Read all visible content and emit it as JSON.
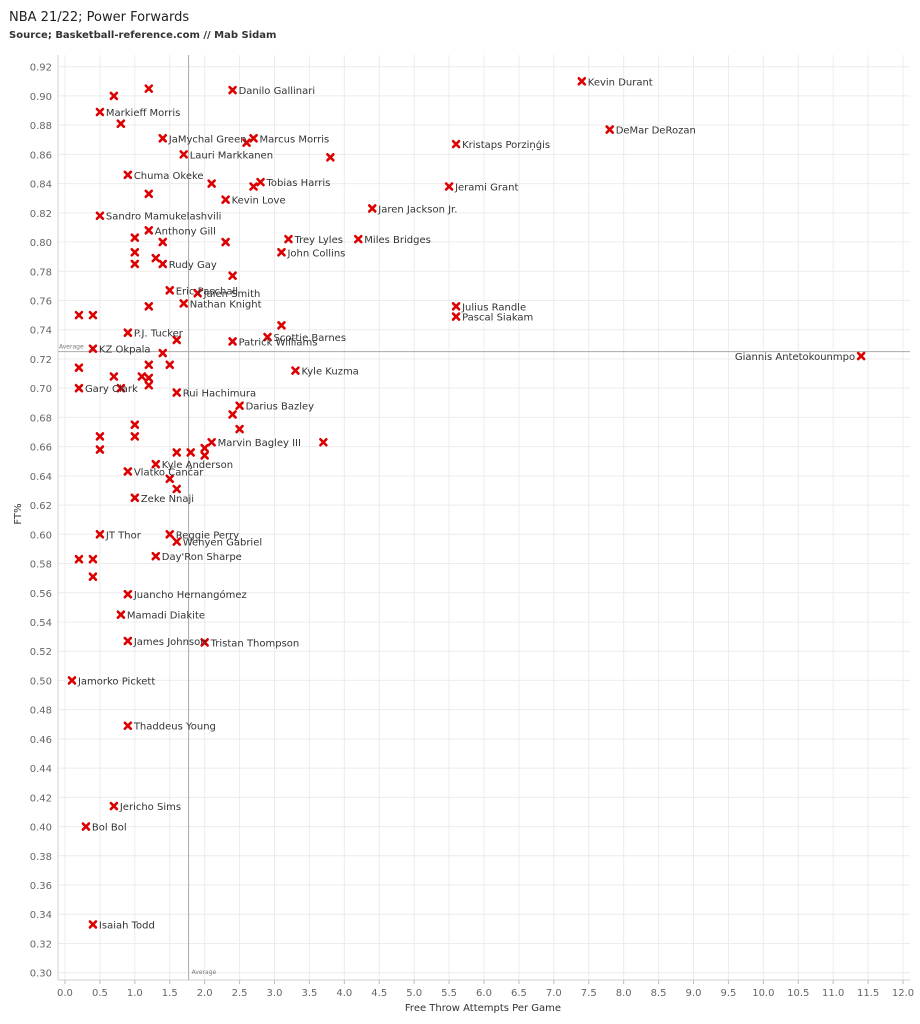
{
  "title": "NBA 21/22; Power Forwards",
  "subtitle": "Source; Basketball-reference.com // Mab Sidam",
  "chart_data": {
    "type": "scatter",
    "xlabel": "Free Throw Attempts Per Game",
    "ylabel": "FT%",
    "xlim": [
      -0.1,
      12.1
    ],
    "ylim": [
      0.295,
      0.928
    ],
    "xticks": [
      "0.0",
      "0.5",
      "1.0",
      "1.5",
      "2.0",
      "2.5",
      "3.0",
      "3.5",
      "4.0",
      "4.5",
      "5.0",
      "5.5",
      "6.0",
      "6.5",
      "7.0",
      "7.5",
      "8.0",
      "8.5",
      "9.0",
      "9.5",
      "10.0",
      "10.5",
      "11.0",
      "11.5",
      "12.0"
    ],
    "yticks": [
      "0.30",
      "0.32",
      "0.34",
      "0.36",
      "0.38",
      "0.40",
      "0.42",
      "0.44",
      "0.46",
      "0.48",
      "0.50",
      "0.52",
      "0.54",
      "0.56",
      "0.58",
      "0.60",
      "0.62",
      "0.64",
      "0.66",
      "0.68",
      "0.70",
      "0.72",
      "0.74",
      "0.76",
      "0.78",
      "0.80",
      "0.82",
      "0.84",
      "0.86",
      "0.88",
      "0.90",
      "0.92"
    ],
    "grid": true,
    "marker_color": "#dd0000",
    "reference_lines": [
      {
        "axis": "x",
        "value": 1.77,
        "label": "Average"
      },
      {
        "axis": "y",
        "value": 0.725,
        "label": "Average"
      }
    ],
    "points": [
      {
        "name": "Kevin Durant",
        "x": 7.4,
        "y": 0.91
      },
      {
        "name": "DeMar DeRozan",
        "x": 7.8,
        "y": 0.877
      },
      {
        "name": "Giannis Antetokounmpo",
        "x": 11.4,
        "y": 0.722
      },
      {
        "name": "Kristaps Porziņģis",
        "x": 5.6,
        "y": 0.867
      },
      {
        "name": "Jerami Grant",
        "x": 5.5,
        "y": 0.838
      },
      {
        "name": "Julius Randle",
        "x": 5.6,
        "y": 0.756
      },
      {
        "name": "Pascal Siakam",
        "x": 5.6,
        "y": 0.749
      },
      {
        "name": "Jaren Jackson Jr.",
        "x": 4.4,
        "y": 0.823
      },
      {
        "name": "Miles Bridges",
        "x": 4.2,
        "y": 0.802
      },
      {
        "name": "",
        "x": 3.8,
        "y": 0.858
      },
      {
        "name": "Danilo Gallinari",
        "x": 2.4,
        "y": 0.904
      },
      {
        "name": "Marcus Morris",
        "x": 2.7,
        "y": 0.871
      },
      {
        "name": "",
        "x": 2.6,
        "y": 0.868
      },
      {
        "name": "Lauri Markkanen",
        "x": 1.7,
        "y": 0.86
      },
      {
        "name": "Tobias Harris",
        "x": 2.8,
        "y": 0.841
      },
      {
        "name": "",
        "x": 2.7,
        "y": 0.838
      },
      {
        "name": "",
        "x": 2.1,
        "y": 0.84
      },
      {
        "name": "Kevin Love",
        "x": 2.3,
        "y": 0.829
      },
      {
        "name": "Trey Lyles",
        "x": 3.2,
        "y": 0.802
      },
      {
        "name": "John Collins",
        "x": 3.1,
        "y": 0.793
      },
      {
        "name": "",
        "x": 2.3,
        "y": 0.8
      },
      {
        "name": "",
        "x": 2.4,
        "y": 0.777
      },
      {
        "name": "Jalen Smith",
        "x": 1.9,
        "y": 0.765
      },
      {
        "name": "Scottie Barnes",
        "x": 2.9,
        "y": 0.735
      },
      {
        "name": "",
        "x": 3.1,
        "y": 0.743
      },
      {
        "name": "Patrick Williams",
        "x": 2.4,
        "y": 0.732
      },
      {
        "name": "Kyle Kuzma",
        "x": 3.3,
        "y": 0.712
      },
      {
        "name": "Darius Bazley",
        "x": 2.5,
        "y": 0.688
      },
      {
        "name": "",
        "x": 2.4,
        "y": 0.682
      },
      {
        "name": "",
        "x": 2.5,
        "y": 0.672
      },
      {
        "name": "Marvin Bagley III",
        "x": 2.1,
        "y": 0.663
      },
      {
        "name": "",
        "x": 3.7,
        "y": 0.663
      },
      {
        "name": "",
        "x": 2.0,
        "y": 0.659
      },
      {
        "name": "",
        "x": 2.0,
        "y": 0.654
      },
      {
        "name": "",
        "x": 1.8,
        "y": 0.656
      },
      {
        "name": "",
        "x": 1.6,
        "y": 0.656
      },
      {
        "name": "Kyle Anderson",
        "x": 1.3,
        "y": 0.648
      },
      {
        "name": "",
        "x": 1.5,
        "y": 0.638
      },
      {
        "name": "Zeke Nnaji",
        "x": 1.0,
        "y": 0.625
      },
      {
        "name": "",
        "x": 1.6,
        "y": 0.631
      },
      {
        "name": "Vlatko Čančar",
        "x": 0.9,
        "y": 0.643
      },
      {
        "name": "Markieff Morris",
        "x": 0.5,
        "y": 0.889
      },
      {
        "name": "",
        "x": 0.7,
        "y": 0.9
      },
      {
        "name": "",
        "x": 1.2,
        "y": 0.905
      },
      {
        "name": "",
        "x": 0.8,
        "y": 0.881
      },
      {
        "name": "JaMychal Green",
        "x": 1.4,
        "y": 0.871
      },
      {
        "name": "Chuma Okeke",
        "x": 0.9,
        "y": 0.846
      },
      {
        "name": "",
        "x": 1.2,
        "y": 0.833
      },
      {
        "name": "Sandro Mamukelashvili",
        "x": 0.5,
        "y": 0.818
      },
      {
        "name": "Anthony Gill",
        "x": 1.2,
        "y": 0.808
      },
      {
        "name": "",
        "x": 1.0,
        "y": 0.803
      },
      {
        "name": "",
        "x": 1.4,
        "y": 0.8
      },
      {
        "name": "",
        "x": 1.0,
        "y": 0.793
      },
      {
        "name": "",
        "x": 1.3,
        "y": 0.789
      },
      {
        "name": "Rudy Gay",
        "x": 1.4,
        "y": 0.785
      },
      {
        "name": "",
        "x": 1.0,
        "y": 0.785
      },
      {
        "name": "Eric Paschall",
        "x": 1.5,
        "y": 0.767
      },
      {
        "name": "",
        "x": 1.2,
        "y": 0.756
      },
      {
        "name": "Nathan Knight",
        "x": 1.7,
        "y": 0.758
      },
      {
        "name": "",
        "x": 0.2,
        "y": 0.75
      },
      {
        "name": "",
        "x": 0.4,
        "y": 0.75
      },
      {
        "name": "P.J. Tucker",
        "x": 0.9,
        "y": 0.738
      },
      {
        "name": "",
        "x": 1.6,
        "y": 0.733
      },
      {
        "name": "KZ Okpala",
        "x": 0.4,
        "y": 0.727
      },
      {
        "name": "",
        "x": 1.4,
        "y": 0.724
      },
      {
        "name": "",
        "x": 1.5,
        "y": 0.716
      },
      {
        "name": "",
        "x": 1.2,
        "y": 0.716
      },
      {
        "name": "",
        "x": 0.2,
        "y": 0.714
      },
      {
        "name": "",
        "x": 0.7,
        "y": 0.708
      },
      {
        "name": "",
        "x": 1.1,
        "y": 0.708
      },
      {
        "name": "",
        "x": 1.2,
        "y": 0.707
      },
      {
        "name": "",
        "x": 1.2,
        "y": 0.702
      },
      {
        "name": "Gary Clark",
        "x": 0.2,
        "y": 0.7
      },
      {
        "name": "",
        "x": 0.8,
        "y": 0.7
      },
      {
        "name": "Rui Hachimura",
        "x": 1.6,
        "y": 0.697
      },
      {
        "name": "",
        "x": 1.0,
        "y": 0.675
      },
      {
        "name": "",
        "x": 1.0,
        "y": 0.667
      },
      {
        "name": "",
        "x": 0.5,
        "y": 0.667
      },
      {
        "name": "",
        "x": 0.5,
        "y": 0.658
      },
      {
        "name": "Reggie Perry",
        "x": 1.5,
        "y": 0.6
      },
      {
        "name": "Wenyen Gabriel",
        "x": 1.6,
        "y": 0.595
      },
      {
        "name": "JT Thor",
        "x": 0.5,
        "y": 0.6
      },
      {
        "name": "Day'Ron Sharpe",
        "x": 1.3,
        "y": 0.585
      },
      {
        "name": "",
        "x": 0.2,
        "y": 0.583
      },
      {
        "name": "",
        "x": 0.4,
        "y": 0.583
      },
      {
        "name": "",
        "x": 0.4,
        "y": 0.571
      },
      {
        "name": "Juancho Hernangómez",
        "x": 0.9,
        "y": 0.559
      },
      {
        "name": "Mamadi Diakite",
        "x": 0.8,
        "y": 0.545
      },
      {
        "name": "James Johnson",
        "x": 0.9,
        "y": 0.527
      },
      {
        "name": "Tristan Thompson",
        "x": 2.0,
        "y": 0.526
      },
      {
        "name": "Jamorko Pickett",
        "x": 0.1,
        "y": 0.5
      },
      {
        "name": "Thaddeus Young",
        "x": 0.9,
        "y": 0.469
      },
      {
        "name": "Jericho Sims",
        "x": 0.7,
        "y": 0.414
      },
      {
        "name": "Bol Bol",
        "x": 0.3,
        "y": 0.4
      },
      {
        "name": "Isaiah Todd",
        "x": 0.4,
        "y": 0.333
      }
    ]
  }
}
